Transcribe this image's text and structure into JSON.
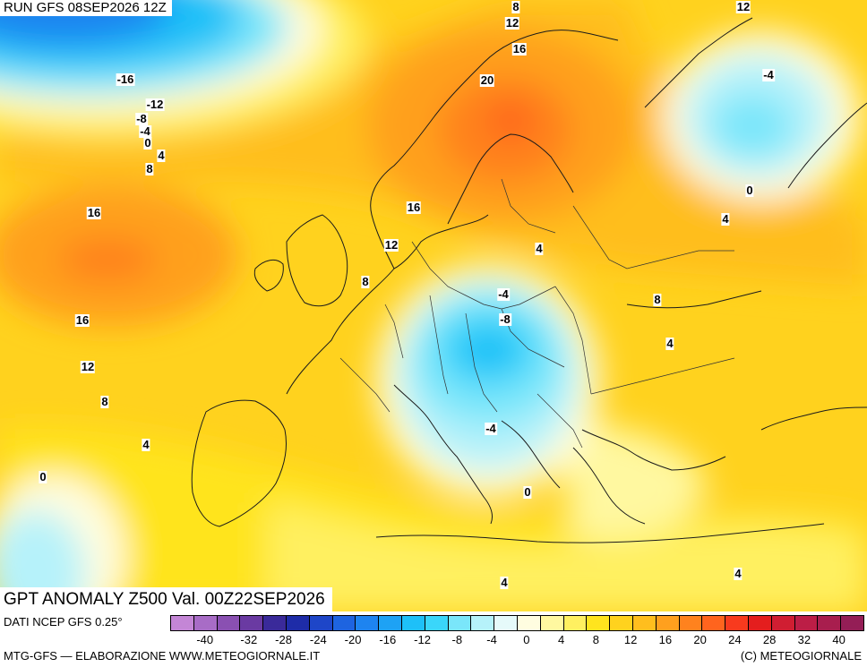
{
  "run_label": "RUN GFS 08SEP2026 12Z",
  "title": "GPT ANOMALY Z500 Val. 00Z22SEP2026",
  "data_source": "DATI NCEP GFS 0.25°",
  "credit_left": "MTG-GFS — ELABORAZIONE WWW.METEOGIORNALE.IT",
  "credit_right": "(C) METEOGIORNALE",
  "legend": {
    "colors": [
      "#c486d6",
      "#a86cc6",
      "#8a50b2",
      "#6a3aa2",
      "#3a2a9a",
      "#1e2ca8",
      "#1e46c8",
      "#1e64e0",
      "#1e84f0",
      "#1ea2f4",
      "#1ec0f8",
      "#3ad6fa",
      "#7ae6fa",
      "#b6f2fa",
      "#e6fafa",
      "#fffde0",
      "#fff8a0",
      "#fff060",
      "#ffe41e",
      "#ffd21e",
      "#ffbe1e",
      "#ffa01e",
      "#ff821e",
      "#ff641e",
      "#f83a1e",
      "#e41e1e",
      "#d01e32",
      "#bc1e46",
      "#a81e4e",
      "#941e56"
    ],
    "tick_labels": [
      "-40",
      "-32",
      "-28",
      "-24",
      "-20",
      "-16",
      "-12",
      "-8",
      "-4",
      "0",
      "4",
      "8",
      "12",
      "16",
      "20",
      "24",
      "28",
      "32",
      "40"
    ]
  },
  "contour_labels": [
    {
      "text": "8"
    },
    {
      "text": "12"
    },
    {
      "text": "16"
    },
    {
      "text": "20"
    },
    {
      "text": "-4"
    },
    {
      "text": "-16"
    },
    {
      "text": "-12"
    },
    {
      "text": "-8"
    },
    {
      "text": "-4"
    },
    {
      "text": "0"
    },
    {
      "text": "4"
    },
    {
      "text": "8"
    },
    {
      "text": "16"
    },
    {
      "text": "12"
    },
    {
      "text": "16"
    },
    {
      "text": "12"
    },
    {
      "text": "8"
    },
    {
      "text": "4"
    },
    {
      "text": "0"
    },
    {
      "text": "8"
    },
    {
      "text": "16"
    },
    {
      "text": "12"
    },
    {
      "text": "4"
    },
    {
      "text": "0"
    },
    {
      "text": "-4"
    },
    {
      "text": "-8"
    },
    {
      "text": "-4"
    },
    {
      "text": "8"
    },
    {
      "text": "4"
    },
    {
      "text": "0"
    },
    {
      "text": "4"
    },
    {
      "text": "4"
    },
    {
      "text": "4"
    }
  ]
}
